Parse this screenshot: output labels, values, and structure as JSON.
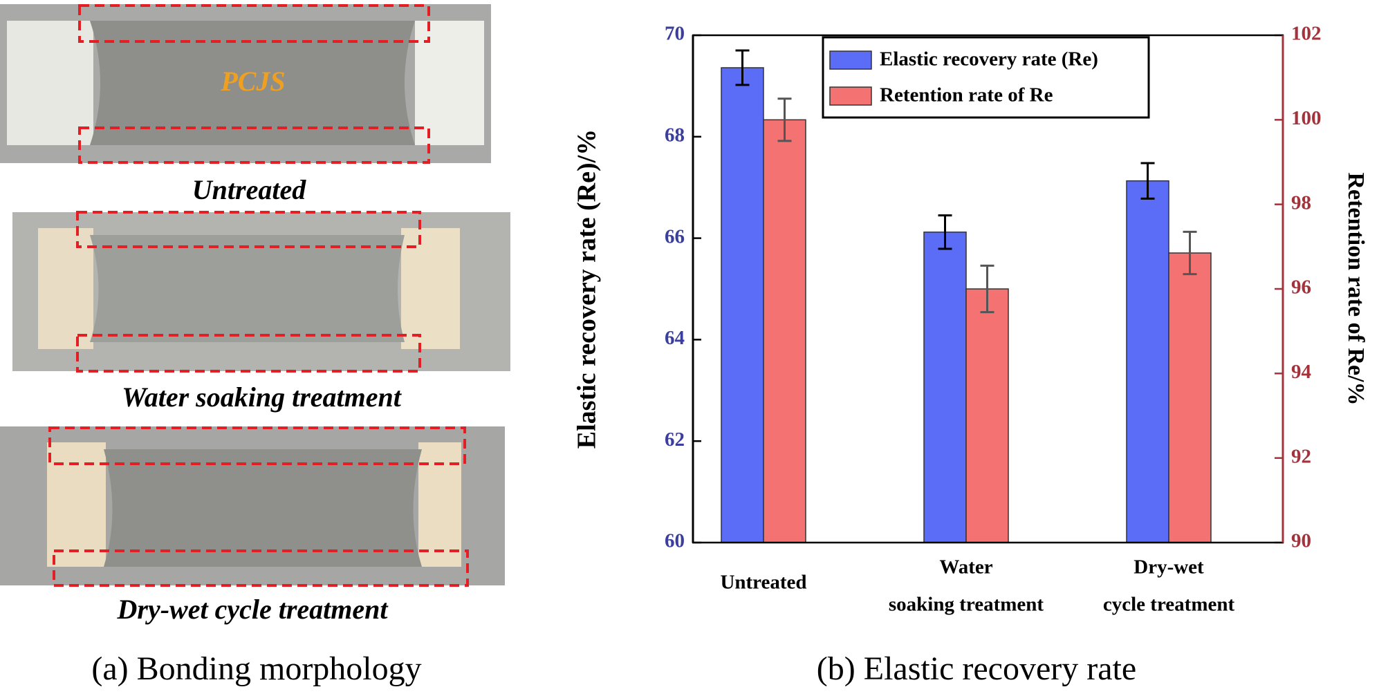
{
  "panels": {
    "photo_label": "PCJS",
    "photo_captions": [
      "Untreated",
      "Water soaking treatment",
      "Dry-wet cycle treatment"
    ],
    "caption_a": "(a) Bonding morphology",
    "caption_b": "(b) Elastic recovery rate"
  },
  "chart_data": {
    "type": "bar",
    "ylabel": "Elastic recovery rate (Re)/%",
    "y2label": "Retention rate of Re/%",
    "categories": [
      [
        "Untreated"
      ],
      [
        "Water",
        "soaking treatment"
      ],
      [
        "Dry-wet",
        "cycle treatment"
      ]
    ],
    "series": [
      {
        "name": "Elastic recovery rate (Re)",
        "color": "#5b6cf6",
        "values": [
          69.36,
          66.12,
          67.13
        ],
        "errors": [
          0.34,
          0.33,
          0.35
        ]
      },
      {
        "name": "Retention rate of Re",
        "color": "#f47272",
        "axis": "y2",
        "values": [
          100.0,
          96.0,
          96.85
        ],
        "errors": [
          0.5,
          0.55,
          0.5
        ]
      }
    ],
    "ylim": [
      60,
      70
    ],
    "yticks": [
      60,
      62,
      64,
      66,
      68,
      70
    ],
    "y2lim": [
      90,
      102
    ],
    "y2ticks": [
      90,
      92,
      94,
      96,
      98,
      100,
      102
    ],
    "ycolor": "#3a3f9e",
    "y2color": "#a3323b",
    "legend": "upper-center"
  }
}
